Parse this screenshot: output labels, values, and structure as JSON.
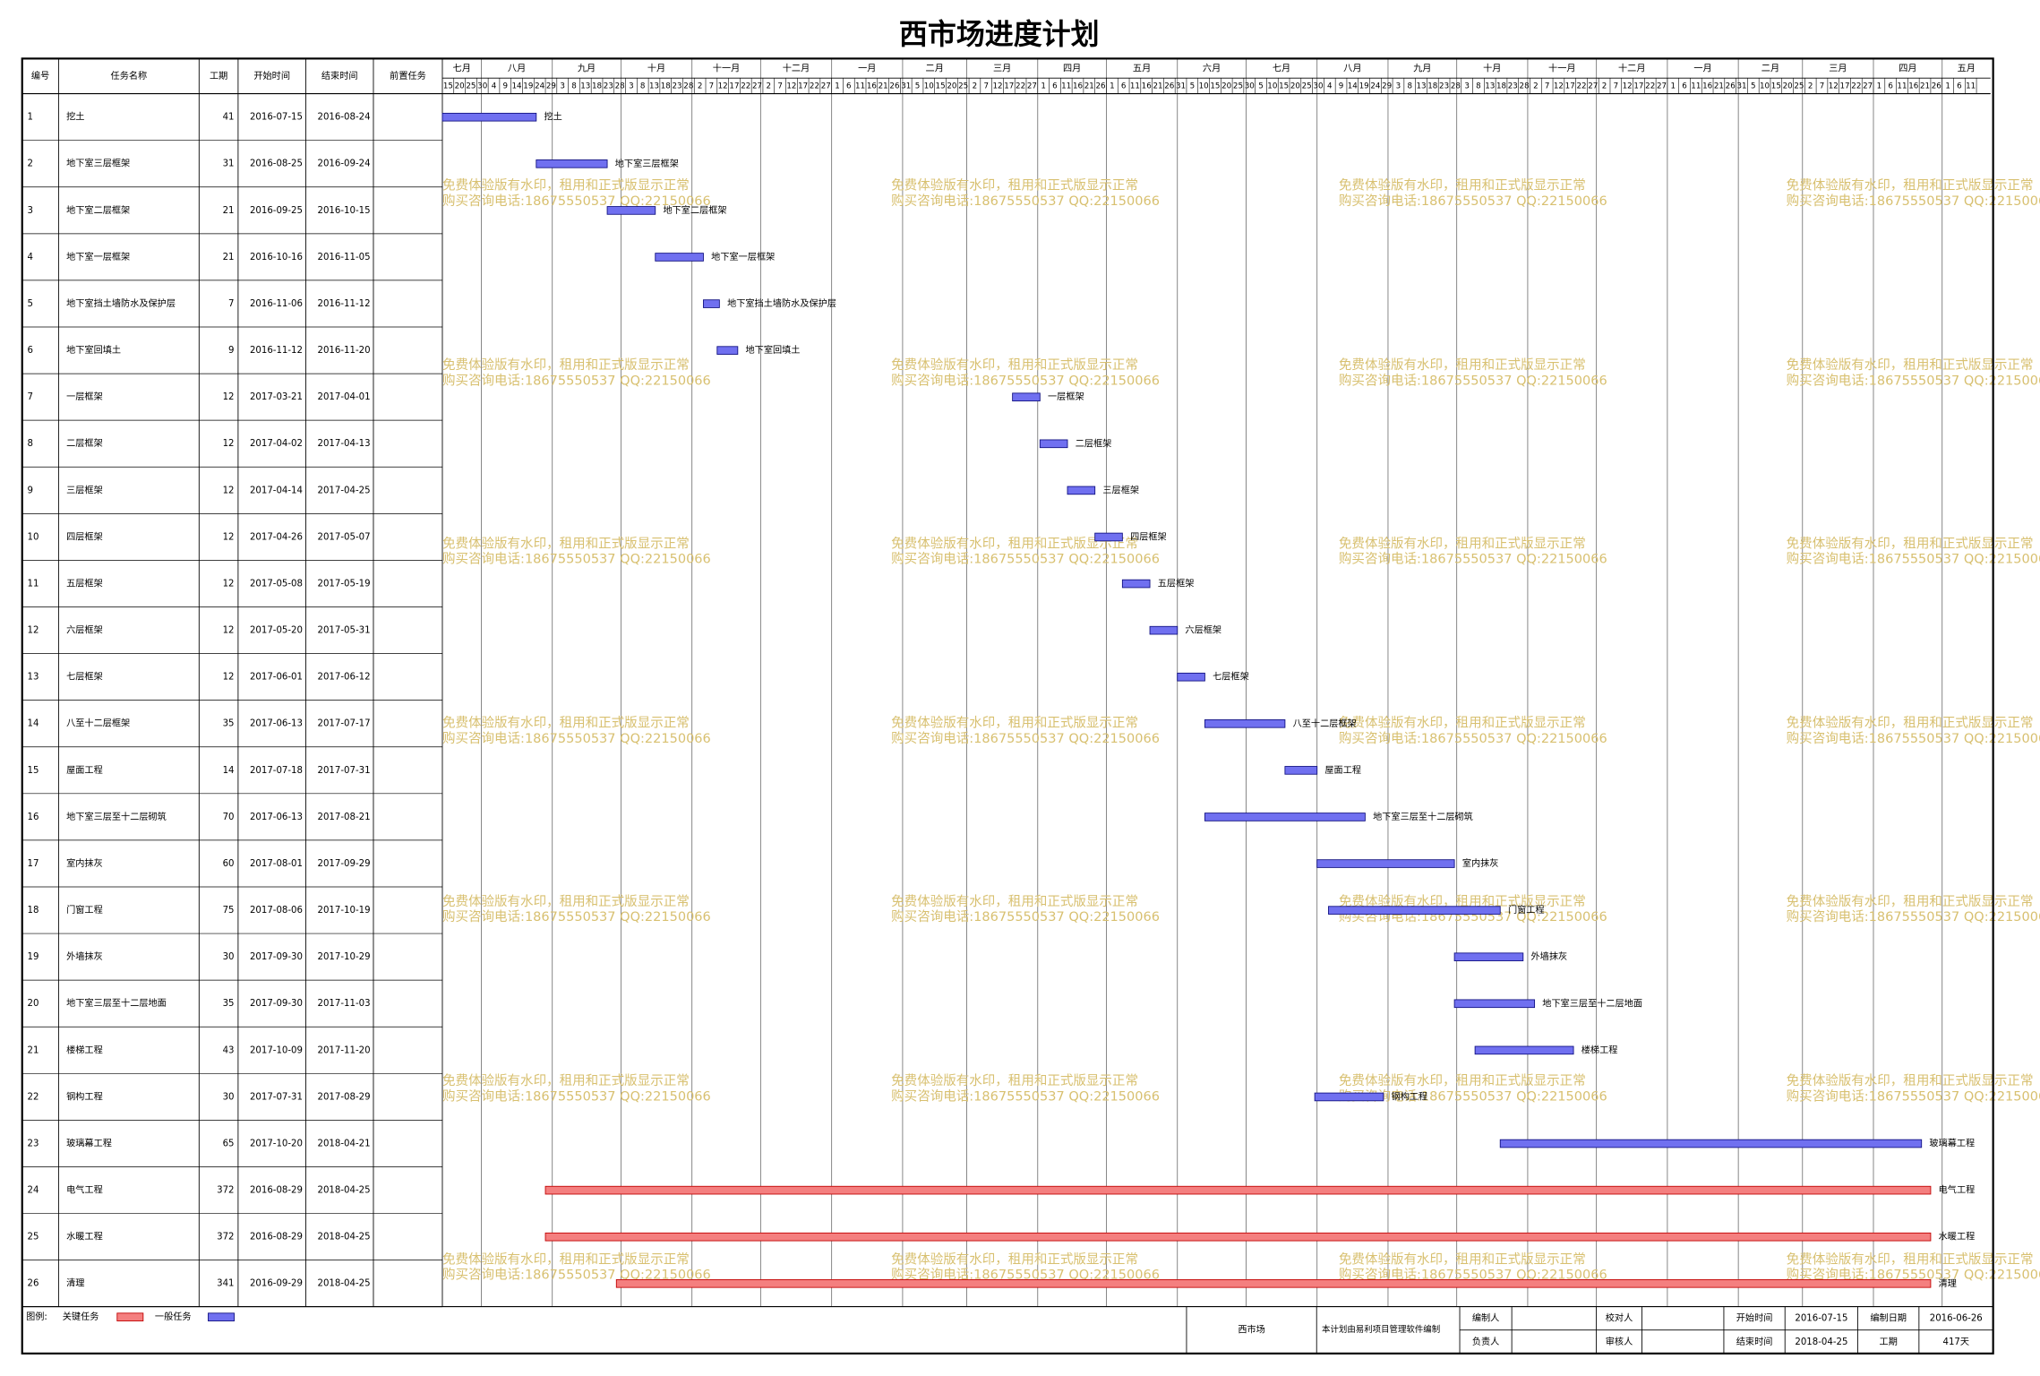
{
  "title": "西市场进度计划",
  "header": [
    "编号",
    "任务名称",
    "工期",
    "开始时间",
    "结束时间",
    "前置任务"
  ],
  "timeline": {
    "months": [
      "七月",
      "八月",
      "九月",
      "十月",
      "十一月",
      "十二月",
      "一月",
      "二月",
      "三月",
      "四月",
      "五月",
      "六月",
      "七月",
      "八月",
      "九月",
      "十月",
      "十一月",
      "十二月",
      "一月",
      "二月",
      "三月",
      "四月",
      "五月"
    ],
    "days": [
      "15",
      "20",
      "25",
      "30",
      "4",
      "9",
      "14",
      "19",
      "24",
      "29",
      "3",
      "8",
      "13",
      "18",
      "23",
      "28",
      "3",
      "8",
      "13",
      "18",
      "23",
      "28",
      "2",
      "7",
      "12",
      "17",
      "22",
      "27",
      "2",
      "7",
      "12",
      "17",
      "22",
      "27",
      "1",
      "6",
      "11",
      "16",
      "21",
      "26",
      "31",
      "5",
      "10",
      "15",
      "20",
      "25",
      "2",
      "7",
      "12",
      "17",
      "22",
      "27",
      "1",
      "6",
      "11",
      "16",
      "21",
      "26",
      "1",
      "6",
      "11",
      "16",
      "21",
      "26",
      "31",
      "5",
      "10",
      "15",
      "20",
      "25",
      "30",
      "5",
      "10",
      "15",
      "20",
      "25",
      "30",
      "4",
      "9",
      "14",
      "19",
      "24",
      "29",
      "3",
      "8",
      "13",
      "18",
      "23",
      "28",
      "3",
      "8",
      "13",
      "18",
      "23",
      "28",
      "2",
      "7",
      "12",
      "17",
      "22",
      "27",
      "2",
      "7",
      "12",
      "17",
      "22",
      "27",
      "1",
      "6",
      "11",
      "16",
      "21",
      "26",
      "31",
      "5",
      "10",
      "15",
      "20",
      "25",
      "2",
      "7",
      "12",
      "17",
      "22",
      "27",
      "1",
      "6",
      "11",
      "16",
      "21",
      "26",
      "1",
      "6",
      "11"
    ]
  },
  "table": {
    "rows": [
      {
        "cells": [
          "1",
          "挖土",
          "41",
          "2016-07-15",
          "2016-08-24"
        ]
      },
      {
        "cells": [
          "2",
          "地下室三层框架",
          "31",
          "2016-08-25",
          "2016-09-24"
        ]
      },
      {
        "cells": [
          "3",
          "地下室二层框架",
          "21",
          "2016-09-25",
          "2016-10-15"
        ]
      },
      {
        "cells": [
          "4",
          "地下室一层框架",
          "21",
          "2016-10-16",
          "2016-11-05"
        ]
      },
      {
        "cells": [
          "5",
          "地下室挡土墙防水及保护层",
          "7",
          "2016-11-06",
          "2016-11-12"
        ]
      },
      {
        "cells": [
          "6",
          "地下室回填土",
          "9",
          "2016-11-12",
          "2016-11-20"
        ]
      },
      {
        "cells": [
          "7",
          "一层框架",
          "12",
          "2017-03-21",
          "2017-04-01"
        ]
      },
      {
        "cells": [
          "8",
          "二层框架",
          "12",
          "2017-04-02",
          "2017-04-13"
        ]
      },
      {
        "cells": [
          "9",
          "三层框架",
          "12",
          "2017-04-14",
          "2017-04-25"
        ]
      },
      {
        "cells": [
          "10",
          "四层框架",
          "12",
          "2017-04-26",
          "2017-05-07"
        ]
      },
      {
        "cells": [
          "11",
          "五层框架",
          "12",
          "2017-05-08",
          "2017-05-19"
        ]
      },
      {
        "cells": [
          "12",
          "六层框架",
          "12",
          "2017-05-20",
          "2017-05-31"
        ]
      },
      {
        "cells": [
          "13",
          "七层框架",
          "12",
          "2017-06-01",
          "2017-06-12"
        ]
      },
      {
        "cells": [
          "14",
          "八至十二层框架",
          "35",
          "2017-06-13",
          "2017-07-17"
        ]
      },
      {
        "cells": [
          "15",
          "屋面工程",
          "14",
          "2017-07-18",
          "2017-07-31"
        ]
      },
      {
        "cells": [
          "16",
          "地下室三层至十二层砌筑",
          "70",
          "2017-06-13",
          "2017-08-21"
        ]
      },
      {
        "cells": [
          "17",
          "室内抹灰",
          "60",
          "2017-08-01",
          "2017-09-29"
        ]
      },
      {
        "cells": [
          "18",
          "门窗工程",
          "75",
          "2017-08-06",
          "2017-10-19"
        ]
      },
      {
        "cells": [
          "19",
          "外墙抹灰",
          "30",
          "2017-09-30",
          "2017-10-29"
        ]
      },
      {
        "cells": [
          "20",
          "地下室三层至十二层地面",
          "35",
          "2017-09-30",
          "2017-11-03"
        ]
      },
      {
        "cells": [
          "21",
          "楼梯工程",
          "43",
          "2017-10-09",
          "2017-11-20"
        ]
      },
      {
        "cells": [
          "22",
          "钢构工程",
          "30",
          "2017-07-31",
          "2017-08-29"
        ]
      },
      {
        "cells": [
          "23",
          "玻璃幕工程",
          "65",
          "2017-10-20",
          "2018-04-21"
        ]
      },
      {
        "cells": [
          "24",
          "电气工程",
          "372",
          "2016-08-29",
          "2018-04-25"
        ],
        "critical": true
      },
      {
        "cells": [
          "25",
          "水暖工程",
          "372",
          "2016-08-29",
          "2018-04-25"
        ],
        "critical": true
      },
      {
        "cells": [
          "26",
          "清理",
          "341",
          "2016-09-29",
          "2018-04-25"
        ],
        "critical": true
      }
    ]
  },
  "watermark": [
    "免费体验版有水印，租用和正式版显示正常",
    "购买咨询电话:18675550537 QQ:22150066"
  ],
  "legend": {
    "label": "图例:",
    "critical": "关键任务",
    "normal": "一般任务"
  },
  "footer": {
    "project": "西市场",
    "software": "本计划由易利项目管理软件编制",
    "editor": "编制人",
    "checker": "校对人",
    "owner": "负责人",
    "reviewer": "审核人",
    "start_label": "开始时间",
    "start_value": "2016-07-15",
    "end_label": "结束时间",
    "end_value": "2018-04-25",
    "date_label": "编制日期",
    "date_value": "2016-06-26",
    "duration_label": "工期",
    "duration_value": "417天"
  }
}
